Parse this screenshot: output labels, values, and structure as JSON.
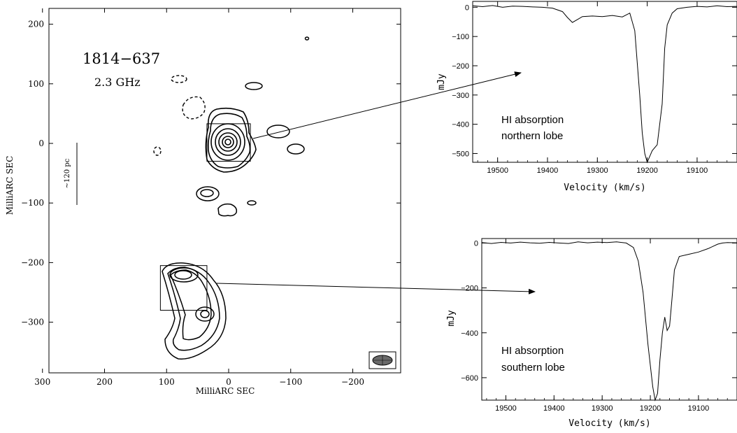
{
  "chart_data": [
    {
      "type": "contour",
      "source_label": "1814−637",
      "freq_label": "2.3 GHz",
      "scale_label": "~120 pc",
      "xlabel": "MilliARC SEC",
      "ylabel": "MilliARC SEC",
      "xlim": [
        300,
        -300
      ],
      "ylim": [
        -380,
        230
      ],
      "xticks": [
        300,
        200,
        100,
        0,
        -100,
        -200
      ],
      "xtick_labels": [
        "300",
        "200",
        "100",
        "0",
        "−100",
        "−200"
      ],
      "yticks": [
        200,
        100,
        0,
        -100,
        -200,
        -300
      ],
      "ytick_labels": [
        "200",
        "100",
        "0",
        "−100",
        "−200",
        "−300"
      ],
      "boxes": [
        {
          "x1": 35,
          "x2": -35,
          "y1": 33,
          "y2": -30
        },
        {
          "x1": 110,
          "x2": 35,
          "y1": -205,
          "y2": -280
        }
      ]
    },
    {
      "type": "line",
      "annotation_line1": "HI absorption",
      "annotation_line2": "northern lobe",
      "xlabel": "Velocity (km/s)",
      "ylabel": "mJy",
      "xlim": [
        19550,
        19020
      ],
      "ylim": [
        -530,
        20
      ],
      "xticks": [
        19500,
        19400,
        19300,
        19200,
        19100
      ],
      "xtick_labels": [
        "19500",
        "19400",
        "19300",
        "19200",
        "19100"
      ],
      "yticks": [
        0,
        -100,
        -200,
        -300,
        -400,
        -500
      ],
      "ytick_labels": [
        "0",
        "−100",
        "−200",
        "−300",
        "−400",
        "−500"
      ],
      "series": [
        {
          "x": [
            19550,
            19530,
            19510,
            19490,
            19470,
            19450,
            19430,
            19410,
            19390,
            19370,
            19360,
            19350,
            19340,
            19330,
            19310,
            19290,
            19270,
            19250,
            19235,
            19225,
            19215,
            19210,
            19205,
            19200,
            19195,
            19190,
            19180,
            19170,
            19165,
            19160,
            19150,
            19140,
            19120,
            19100,
            19080,
            19060,
            19040,
            19020
          ],
          "y": [
            5,
            2,
            6,
            0,
            4,
            3,
            1,
            0,
            -3,
            -15,
            -35,
            -52,
            -42,
            -32,
            -30,
            -32,
            -28,
            -33,
            -20,
            -80,
            -300,
            -430,
            -500,
            -530,
            -510,
            -490,
            -470,
            -330,
            -140,
            -60,
            -20,
            -5,
            0,
            3,
            1,
            5,
            2,
            3
          ]
        }
      ]
    },
    {
      "type": "line",
      "annotation_line1": "HI absorption",
      "annotation_line2": "southern lobe",
      "xlabel": "Velocity (km/s)",
      "ylabel": "mJy",
      "xlim": [
        19550,
        19020
      ],
      "ylim": [
        -700,
        20
      ],
      "xticks": [
        19500,
        19400,
        19300,
        19200,
        19100
      ],
      "xtick_labels": [
        "19500",
        "19400",
        "19300",
        "19200",
        "19100"
      ],
      "yticks": [
        0,
        -200,
        -400,
        -600
      ],
      "ytick_labels": [
        "0",
        "−200",
        "−400",
        "−600"
      ],
      "series": [
        {
          "x": [
            19550,
            19530,
            19510,
            19490,
            19470,
            19450,
            19430,
            19410,
            19390,
            19370,
            19350,
            19330,
            19310,
            19290,
            19270,
            19250,
            19235,
            19225,
            19215,
            19205,
            19195,
            19190,
            19185,
            19180,
            19175,
            19170,
            19165,
            19160,
            19155,
            19150,
            19140,
            19120,
            19100,
            19080,
            19060,
            19050,
            19040,
            19020
          ],
          "y": [
            2,
            -2,
            3,
            0,
            4,
            1,
            -1,
            3,
            0,
            -2,
            5,
            1,
            4,
            2,
            5,
            0,
            -20,
            -80,
            -220,
            -450,
            -640,
            -700,
            -670,
            -520,
            -400,
            -330,
            -390,
            -370,
            -250,
            -120,
            -60,
            -50,
            -40,
            -25,
            -5,
            0,
            2,
            1
          ]
        }
      ]
    }
  ]
}
